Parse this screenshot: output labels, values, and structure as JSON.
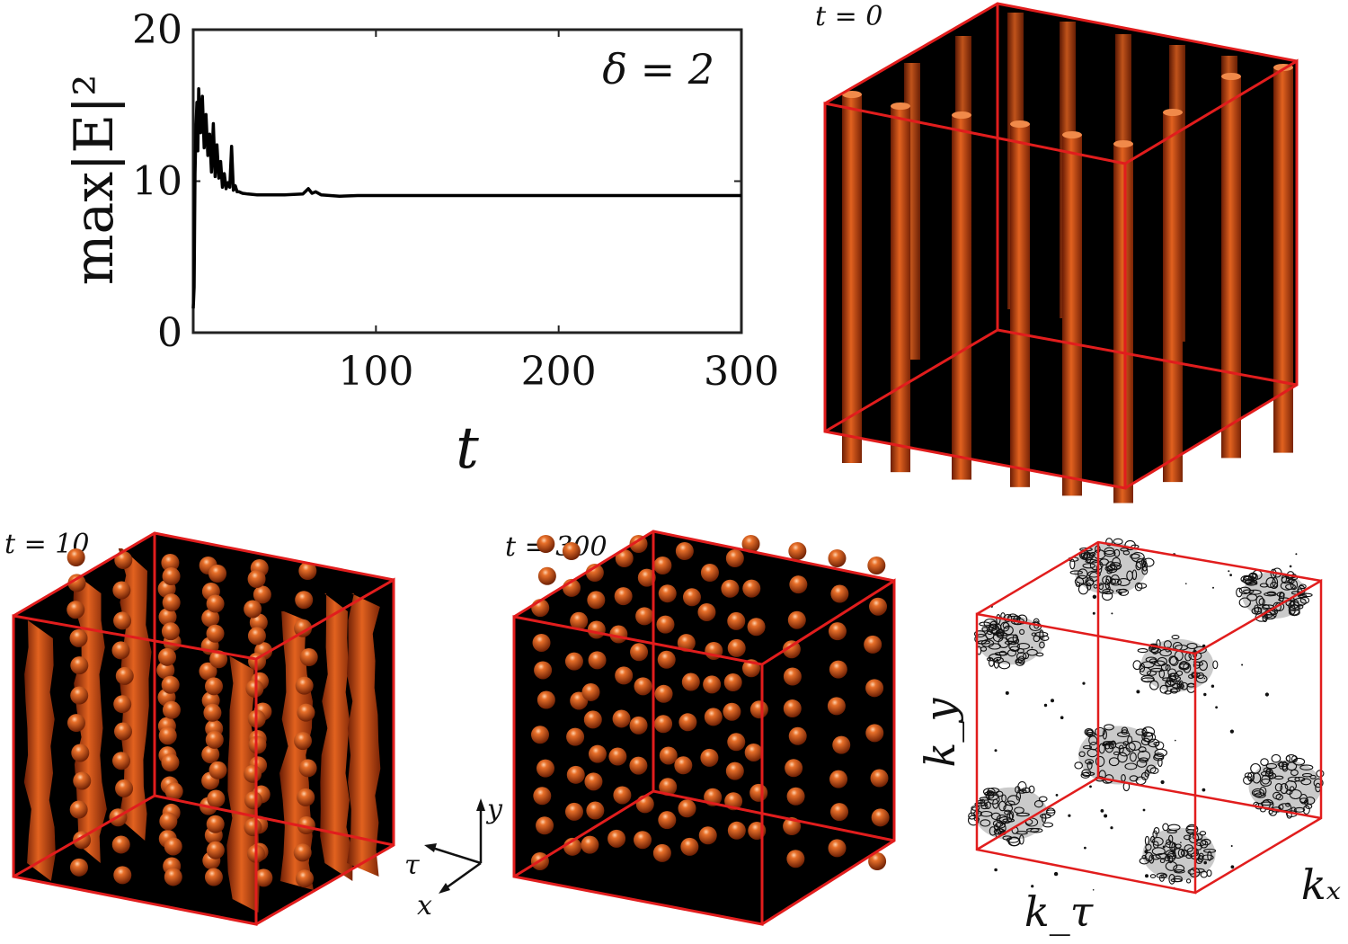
{
  "chart_data": [
    {
      "type": "line",
      "title": "",
      "annotation": "δ = 2",
      "xlabel": "t",
      "ylabel": "max|E|²",
      "xlim": [
        0,
        300
      ],
      "ylim": [
        0,
        20
      ],
      "x_ticks": [
        "100",
        "200",
        "300"
      ],
      "y_ticks": [
        "0",
        "10",
        "20"
      ],
      "grid": false,
      "series": [
        {
          "color": "#000000",
          "x": [
            0,
            0.5,
            1,
            1.5,
            2,
            2.5,
            3,
            4,
            5,
            6,
            7,
            8,
            9,
            10,
            11,
            12,
            13,
            14,
            15,
            16,
            17,
            18,
            19,
            20,
            21,
            22,
            23,
            24,
            25,
            27,
            30,
            35,
            40,
            50,
            60,
            63,
            65,
            67,
            70,
            80,
            90,
            120,
            160,
            200,
            250,
            300
          ],
          "y": [
            1.6,
            3,
            10.5,
            13.5,
            15.2,
            12,
            16.1,
            13.2,
            15.6,
            12.2,
            14.4,
            11.7,
            13.1,
            10.6,
            13.8,
            10.3,
            12.4,
            10.2,
            11.3,
            9.6,
            10.5,
            9.5,
            9.9,
            9.6,
            12.3,
            9.4,
            9.7,
            9.3,
            9.3,
            9.2,
            9.15,
            9.1,
            9.1,
            9.1,
            9.15,
            9.5,
            9.2,
            9.3,
            9.1,
            9.0,
            9.05,
            9.05,
            9.05,
            9.05,
            9.05,
            9.05
          ]
        }
      ]
    },
    {
      "type": "other",
      "label": "t = 0",
      "description_style": "vertical filaments"
    },
    {
      "type": "other",
      "label": "t = 10"
    },
    {
      "type": "other",
      "label": "t = 300"
    },
    {
      "type": "other",
      "label_x": "kₓ",
      "label_y": "k_y",
      "label_tau": "k_τ"
    }
  ],
  "axes_triad": {
    "y": "y",
    "tau": "τ",
    "x": "x"
  },
  "colors": {
    "filament": "#c2410c",
    "box_edge": "#e11d1d",
    "background_3d": "#000000"
  }
}
